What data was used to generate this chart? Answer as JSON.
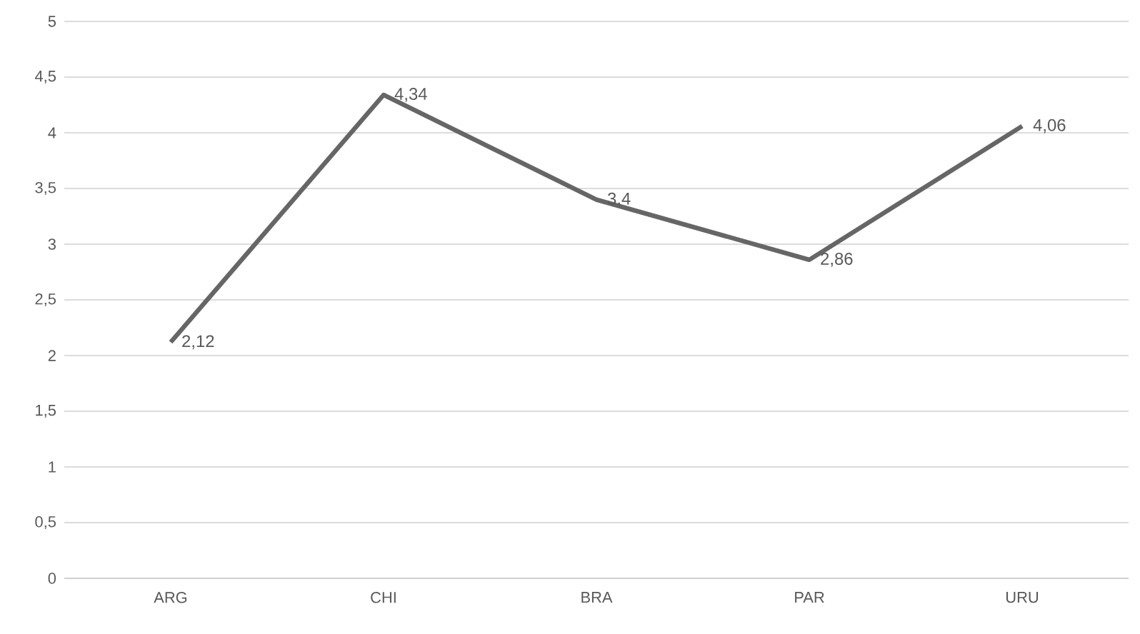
{
  "chart_data": {
    "type": "line",
    "categories": [
      "ARG",
      "CHI",
      "BRA",
      "PAR",
      "URU"
    ],
    "series": [
      {
        "color": "#666666",
        "values": [
          2.12,
          4.34,
          3.4,
          2.86,
          4.06
        ],
        "value_labels": [
          "2,12",
          "4,34",
          "3,4",
          "2,86",
          "4,06"
        ]
      }
    ],
    "ylim": [
      0,
      5
    ],
    "yticks": [
      0,
      {
        "value": 0.5,
        "label": "0,5"
      },
      1,
      {
        "value": 1.5,
        "label": "1,5"
      },
      2,
      {
        "value": 2.5,
        "label": "2,5"
      },
      3,
      {
        "value": 3.5,
        "label": "3,5"
      },
      4,
      {
        "value": 4.5,
        "label": "4,5"
      },
      5
    ],
    "grid": "y",
    "marker": "none",
    "line_style": "solid"
  }
}
